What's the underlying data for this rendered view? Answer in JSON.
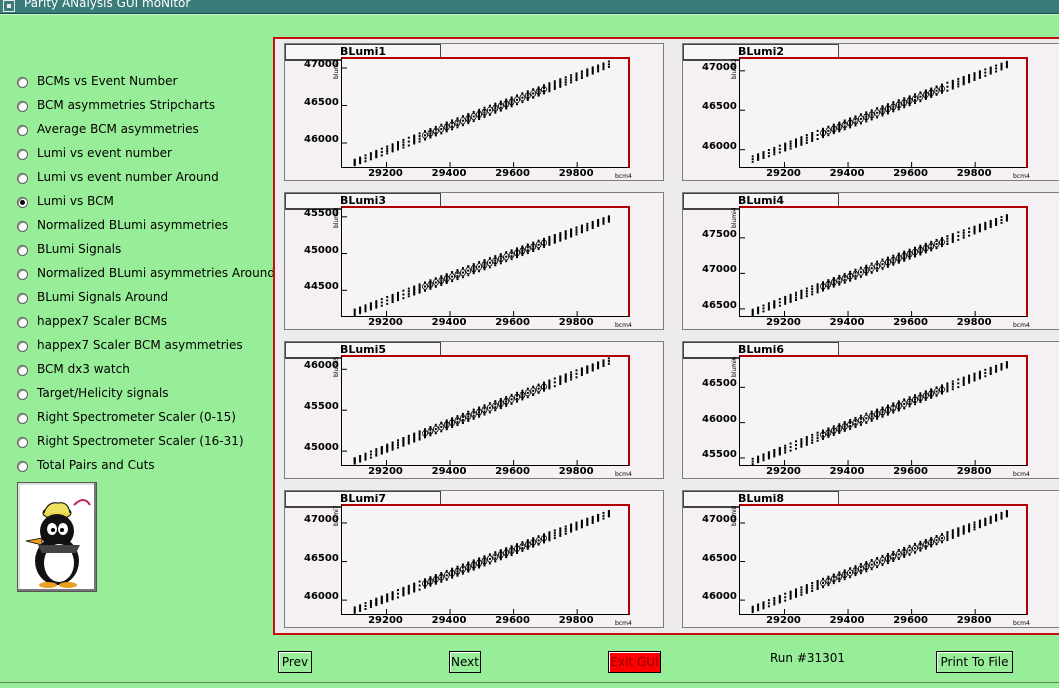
{
  "window": {
    "title": "Parity ANalysis GUI moNitor"
  },
  "menu": {
    "selected": 5,
    "items": [
      "BCMs vs Event Number",
      "BCM asymmetries Stripcharts",
      "Average BCM asymmetries",
      "Lumi vs event number",
      "Lumi vs event number Around",
      "Lumi vs BCM",
      "Normalized BLumi asymmetries",
      "BLumi Signals",
      "Normalized BLumi asymmetries Around",
      "BLumi Signals Around",
      "happex7 Scaler BCMs",
      "happex7 Scaler BCM asymmetries",
      "BCM dx3 watch",
      "Target/Helicity signals",
      "Right Spectrometer Scaler (0-15)",
      "Right Spectrometer Scaler (16-31)",
      "Total Pairs and Cuts"
    ]
  },
  "chart_data": [
    {
      "type": "scatter",
      "title": "BLumi1",
      "xlabel": "bcm4",
      "ylabel": "blumi1",
      "xlim": [
        29060,
        29960
      ],
      "ylim": [
        45680,
        47120
      ],
      "xticks": [
        29200,
        29400,
        29600,
        29800
      ],
      "yticks": [
        46000,
        46500,
        47000
      ],
      "trend": {
        "x": [
          29100,
          29900
        ],
        "y": [
          45740,
          47050
        ]
      }
    },
    {
      "type": "scatter",
      "title": "BLumi2",
      "xlabel": "bcm4",
      "ylabel": "blumi2",
      "xlim": [
        29060,
        29960
      ],
      "ylim": [
        45780,
        47150
      ],
      "xticks": [
        29200,
        29400,
        29600,
        29800
      ],
      "yticks": [
        46000,
        46500,
        47000
      ],
      "trend": {
        "x": [
          29100,
          29900
        ],
        "y": [
          45880,
          47080
        ]
      }
    },
    {
      "type": "scatter",
      "title": "BLumi3",
      "xlabel": "bcm4",
      "ylabel": "blumi3",
      "xlim": [
        29060,
        29960
      ],
      "ylim": [
        44150,
        45620
      ],
      "xticks": [
        29200,
        29400,
        29600,
        29800
      ],
      "yticks": [
        44500,
        45000,
        45500
      ],
      "trend": {
        "x": [
          29100,
          29900
        ],
        "y": [
          44200,
          45470
        ]
      }
    },
    {
      "type": "scatter",
      "title": "BLumi4",
      "xlabel": "bcm4",
      "ylabel": "blumi4",
      "xlim": [
        29060,
        29960
      ],
      "ylim": [
        46400,
        47920
      ],
      "xticks": [
        29200,
        29400,
        29600,
        29800
      ],
      "yticks": [
        46500,
        47000,
        47500
      ],
      "trend": {
        "x": [
          29100,
          29900
        ],
        "y": [
          46450,
          47780
        ]
      }
    },
    {
      "type": "scatter",
      "title": "BLumi5",
      "xlabel": "bcm4",
      "ylabel": "blumi5",
      "xlim": [
        29060,
        29960
      ],
      "ylim": [
        44830,
        46150
      ],
      "xticks": [
        29200,
        29400,
        29600,
        29800
      ],
      "yticks": [
        45000,
        45500,
        46000
      ],
      "trend": {
        "x": [
          29100,
          29900
        ],
        "y": [
          44880,
          46100
        ]
      }
    },
    {
      "type": "scatter",
      "title": "BLumi6",
      "xlabel": "bcm4",
      "ylabel": "blumi6",
      "xlim": [
        29060,
        29960
      ],
      "ylim": [
        45400,
        46930
      ],
      "xticks": [
        29200,
        29400,
        29600,
        29800
      ],
      "yticks": [
        45500,
        46000,
        46500
      ],
      "trend": {
        "x": [
          29100,
          29900
        ],
        "y": [
          45450,
          46820
        ]
      }
    },
    {
      "type": "scatter",
      "title": "BLumi7",
      "xlabel": "bcm4",
      "ylabel": "blumi7",
      "xlim": [
        29060,
        29960
      ],
      "ylim": [
        45820,
        47220
      ],
      "xticks": [
        29200,
        29400,
        29600,
        29800
      ],
      "yticks": [
        46000,
        46500,
        47000
      ],
      "trend": {
        "x": [
          29100,
          29900
        ],
        "y": [
          45870,
          47120
        ]
      }
    },
    {
      "type": "scatter",
      "title": "BLumi8",
      "xlabel": "bcm4",
      "ylabel": "blumi8",
      "xlim": [
        29060,
        29960
      ],
      "ylim": [
        45820,
        47220
      ],
      "xticks": [
        29200,
        29400,
        29600,
        29800
      ],
      "yticks": [
        46000,
        46500,
        47000
      ],
      "trend": {
        "x": [
          29100,
          29900
        ],
        "y": [
          45880,
          47120
        ]
      }
    }
  ],
  "buttons": {
    "prev": "Prev",
    "next": "Next",
    "exit": "Exit GUI",
    "print": "Print To File"
  },
  "status": {
    "run": "Run #31301"
  }
}
